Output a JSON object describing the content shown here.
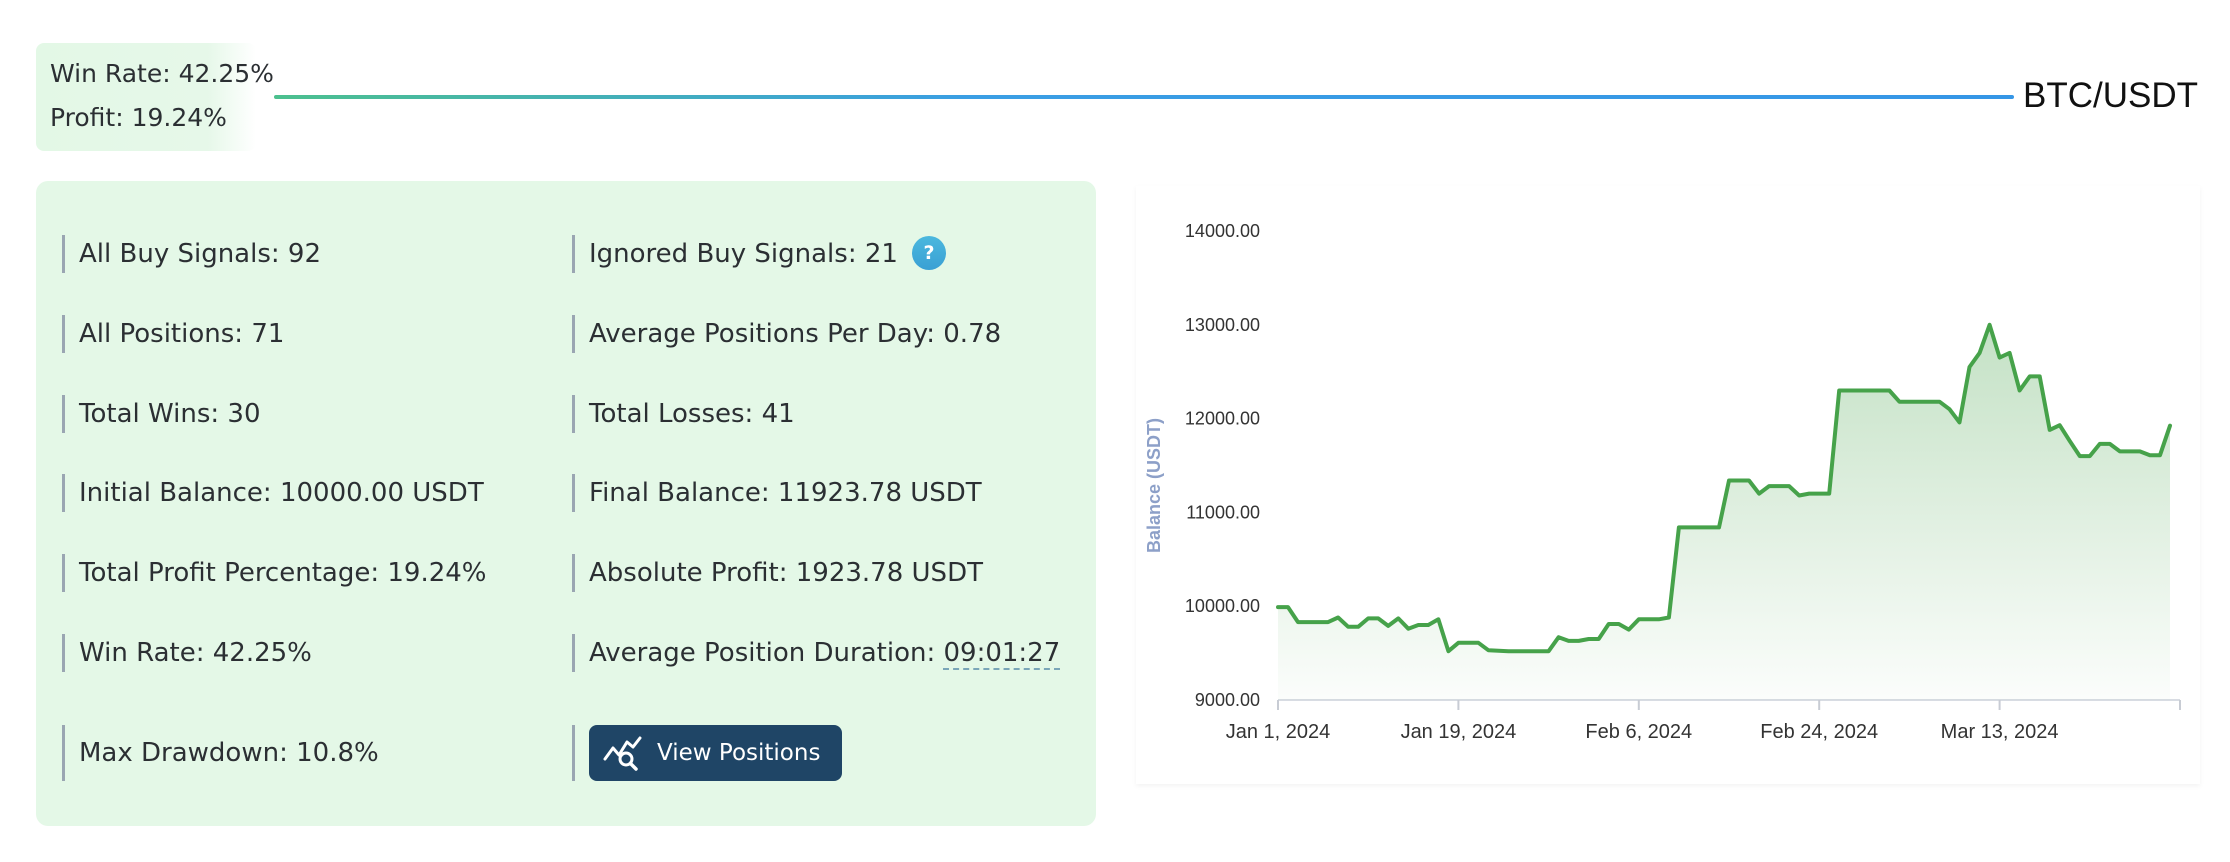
{
  "header": {
    "win_rate_line": "Win Rate: 42.25%",
    "profit_line": "Profit: 19.24%",
    "pair": "BTC/USDT"
  },
  "stats": {
    "all_buy_signals": {
      "label": "All Buy Signals:",
      "value": "92"
    },
    "ignored_buy_signals": {
      "label": "Ignored Buy Signals:",
      "value": "21",
      "help_icon": "question-mark",
      "help_glyph": "?"
    },
    "all_positions": {
      "label": "All Positions:",
      "value": "71"
    },
    "avg_positions_per_day": {
      "label": "Average Positions Per Day:",
      "value": "0.78"
    },
    "total_wins": {
      "label": "Total Wins:",
      "value": "30"
    },
    "total_losses": {
      "label": "Total Losses:",
      "value": "41"
    },
    "initial_balance": {
      "label": "Initial Balance:",
      "value": "10000.00 USDT"
    },
    "final_balance": {
      "label": "Final Balance:",
      "value": "11923.78 USDT"
    },
    "total_profit_pct": {
      "label": "Total Profit Percentage:",
      "value": "19.24%"
    },
    "absolute_profit": {
      "label": "Absolute Profit:",
      "value": "1923.78 USDT"
    },
    "win_rate": {
      "label": "Win Rate:",
      "value": "42.25%"
    },
    "avg_position_duration": {
      "label": "Average Position Duration:",
      "value": "09:01:27"
    },
    "max_drawdown": {
      "label": "Max Drawdown:",
      "value": "10.8%"
    },
    "view_positions_button": {
      "label": "View Positions",
      "icon": "chart-search-icon"
    }
  },
  "colors": {
    "panel_bg": "#e4f8e7",
    "button_bg": "#1f4566",
    "line": "#46a24a",
    "help_icon": "#42acd9"
  },
  "chart_data": {
    "type": "area",
    "title": "",
    "xlabel": "",
    "ylabel": "Balance (USDT)",
    "ylim": [
      9000,
      14000
    ],
    "yticks": [
      "9000.00",
      "10000.00",
      "11000.00",
      "12000.00",
      "13000.00",
      "14000.00"
    ],
    "xticks": [
      "Jan 1, 2024",
      "Jan 19, 2024",
      "Feb 6, 2024",
      "Feb 24, 2024",
      "Mar 13, 2024"
    ],
    "xlim": [
      "2024-01-01",
      "2024-03-31"
    ],
    "grid": false,
    "legend": "none",
    "series": [
      {
        "values": [
          [
            "2024-01-01",
            9990
          ],
          [
            "2024-01-02",
            9990
          ],
          [
            "2024-01-03",
            9830
          ],
          [
            "2024-01-05",
            9830
          ],
          [
            "2024-01-06",
            9830
          ],
          [
            "2024-01-07",
            9880
          ],
          [
            "2024-01-08",
            9780
          ],
          [
            "2024-01-09",
            9780
          ],
          [
            "2024-01-10",
            9870
          ],
          [
            "2024-01-11",
            9870
          ],
          [
            "2024-01-12",
            9790
          ],
          [
            "2024-01-13",
            9870
          ],
          [
            "2024-01-14",
            9760
          ],
          [
            "2024-01-15",
            9800
          ],
          [
            "2024-01-16",
            9800
          ],
          [
            "2024-01-17",
            9860
          ],
          [
            "2024-01-18",
            9520
          ],
          [
            "2024-01-19",
            9610
          ],
          [
            "2024-01-20",
            9610
          ],
          [
            "2024-01-21",
            9610
          ],
          [
            "2024-01-22",
            9530
          ],
          [
            "2024-01-24",
            9520
          ],
          [
            "2024-01-26",
            9520
          ],
          [
            "2024-01-28",
            9520
          ],
          [
            "2024-01-29",
            9670
          ],
          [
            "2024-01-30",
            9630
          ],
          [
            "2024-01-31",
            9630
          ],
          [
            "2024-02-01",
            9650
          ],
          [
            "2024-02-02",
            9650
          ],
          [
            "2024-02-03",
            9810
          ],
          [
            "2024-02-04",
            9810
          ],
          [
            "2024-02-05",
            9750
          ],
          [
            "2024-02-06",
            9860
          ],
          [
            "2024-02-07",
            9860
          ],
          [
            "2024-02-08",
            9860
          ],
          [
            "2024-02-09",
            9880
          ],
          [
            "2024-02-10",
            10840
          ],
          [
            "2024-02-11",
            10840
          ],
          [
            "2024-02-12",
            10840
          ],
          [
            "2024-02-13",
            10840
          ],
          [
            "2024-02-14",
            10840
          ],
          [
            "2024-02-15",
            11340
          ],
          [
            "2024-02-16",
            11340
          ],
          [
            "2024-02-17",
            11340
          ],
          [
            "2024-02-18",
            11200
          ],
          [
            "2024-02-19",
            11280
          ],
          [
            "2024-02-20",
            11280
          ],
          [
            "2024-02-21",
            11280
          ],
          [
            "2024-02-22",
            11180
          ],
          [
            "2024-02-23",
            11200
          ],
          [
            "2024-02-24",
            11200
          ],
          [
            "2024-02-25",
            11200
          ],
          [
            "2024-02-26",
            12300
          ],
          [
            "2024-02-27",
            12300
          ],
          [
            "2024-02-28",
            12300
          ],
          [
            "2024-02-29",
            12300
          ],
          [
            "2024-03-01",
            12300
          ],
          [
            "2024-03-02",
            12300
          ],
          [
            "2024-03-03",
            12180
          ],
          [
            "2024-03-04",
            12180
          ],
          [
            "2024-03-05",
            12180
          ],
          [
            "2024-03-06",
            12180
          ],
          [
            "2024-03-07",
            12180
          ],
          [
            "2024-03-08",
            12100
          ],
          [
            "2024-03-09",
            11960
          ],
          [
            "2024-03-10",
            12550
          ],
          [
            "2024-03-11",
            12700
          ],
          [
            "2024-03-12",
            13000
          ],
          [
            "2024-03-13",
            12650
          ],
          [
            "2024-03-14",
            12700
          ],
          [
            "2024-03-15",
            12300
          ],
          [
            "2024-03-16",
            12450
          ],
          [
            "2024-03-17",
            12450
          ],
          [
            "2024-03-18",
            11880
          ],
          [
            "2024-03-19",
            11930
          ],
          [
            "2024-03-20",
            11760
          ],
          [
            "2024-03-21",
            11600
          ],
          [
            "2024-03-22",
            11600
          ],
          [
            "2024-03-23",
            11730
          ],
          [
            "2024-03-24",
            11730
          ],
          [
            "2024-03-25",
            11650
          ],
          [
            "2024-03-26",
            11650
          ],
          [
            "2024-03-27",
            11650
          ],
          [
            "2024-03-28",
            11610
          ],
          [
            "2024-03-29",
            11610
          ],
          [
            "2024-03-30",
            11923.78
          ]
        ]
      }
    ]
  }
}
